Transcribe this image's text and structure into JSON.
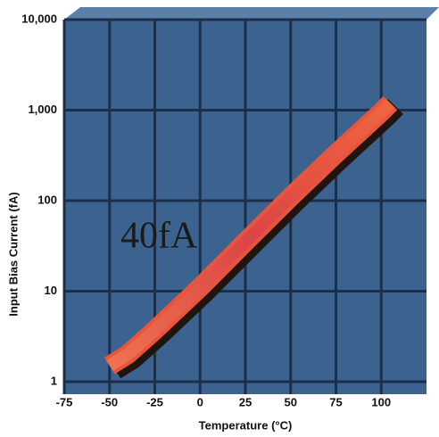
{
  "chart_data": {
    "type": "line",
    "x": [
      -50,
      -40,
      -25,
      0,
      25,
      50,
      75,
      100,
      105
    ],
    "values": [
      1.5,
      2,
      3.7,
      11,
      35,
      110,
      330,
      950,
      1200
    ],
    "color": "#e8553a",
    "annotation": "40fA",
    "xlabel": "Temperature (°C)",
    "ylabel": "Input Bias Current (fA)",
    "xlim": [
      -75,
      125
    ],
    "xticks": [
      -75,
      -50,
      -25,
      0,
      25,
      50,
      75,
      100
    ],
    "ylim": [
      1,
      10000
    ],
    "log_y": true,
    "yticks": [
      1,
      10,
      100,
      {
        "value": 1000,
        "label": "1,000"
      },
      {
        "value": 10000,
        "label": "10,000"
      }
    ],
    "grid": true
  }
}
